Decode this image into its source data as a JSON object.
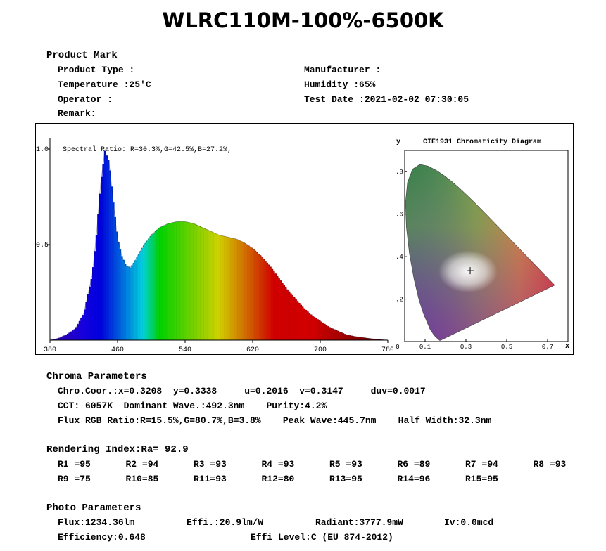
{
  "title": "WLRC110M-100%-6500K",
  "product": {
    "heading": "Product Mark",
    "type_label": "Product Type :",
    "temperature_label": "Temperature :25'C",
    "operator_label": "Operator :",
    "remark_label": "Remark:",
    "manufacturer_label": "Manufacturer :",
    "humidity_label": "Humidity :65%",
    "test_date_label": "Test Date :2021-02-02 07:30:05"
  },
  "chart_data": [
    {
      "type": "area",
      "title": "",
      "annotation": "Spectral Ratio:  R=30.3%,G=42.5%,B=27.2%,",
      "xlabel": "",
      "ylabel": "",
      "xlim": [
        380,
        780
      ],
      "ylim": [
        0,
        1.0
      ],
      "x_ticks": [
        "380",
        "460",
        "540",
        "620",
        "700",
        "780"
      ],
      "y_ticks": [
        "1.0",
        "0.5"
      ],
      "fill": "spectral-wavelength-colors",
      "x": [
        380,
        390,
        400,
        410,
        420,
        430,
        435,
        440,
        445,
        450,
        455,
        460,
        465,
        470,
        475,
        480,
        490,
        500,
        510,
        520,
        530,
        540,
        550,
        560,
        570,
        580,
        590,
        600,
        610,
        620,
        630,
        640,
        650,
        660,
        670,
        680,
        690,
        700,
        710,
        720,
        730,
        740,
        750,
        760,
        770,
        780
      ],
      "values": [
        0.0,
        0.01,
        0.03,
        0.06,
        0.14,
        0.34,
        0.55,
        0.82,
        0.99,
        0.93,
        0.72,
        0.53,
        0.44,
        0.39,
        0.38,
        0.41,
        0.49,
        0.55,
        0.59,
        0.61,
        0.62,
        0.62,
        0.61,
        0.59,
        0.57,
        0.55,
        0.54,
        0.53,
        0.51,
        0.48,
        0.44,
        0.39,
        0.33,
        0.27,
        0.22,
        0.17,
        0.13,
        0.1,
        0.07,
        0.05,
        0.03,
        0.02,
        0.014,
        0.008,
        0.004,
        0.0
      ]
    },
    {
      "type": "scatter",
      "title": "CIE1931 Chromaticity Diagram",
      "xlabel": "x",
      "ylabel": "y",
      "xlim": [
        0,
        0.8
      ],
      "ylim": [
        0,
        0.9
      ],
      "x_ticks": [
        "0",
        "0.1",
        "0.3",
        "0.5",
        "0.7"
      ],
      "y_ticks": [
        ".8",
        ".6",
        ".4",
        ".2"
      ],
      "point": {
        "x": 0.3208,
        "y": 0.3338
      },
      "locus_x": [
        0.1741,
        0.1738,
        0.1733,
        0.1726,
        0.1714,
        0.1689,
        0.1644,
        0.1566,
        0.144,
        0.1241,
        0.0913,
        0.0687,
        0.0454,
        0.0235,
        0.0082,
        0.0039,
        0.0139,
        0.0389,
        0.0743,
        0.1142,
        0.1547,
        0.1929,
        0.2296,
        0.2658,
        0.3016,
        0.3373,
        0.3731,
        0.4087,
        0.4441,
        0.4788,
        0.5125,
        0.5448,
        0.5752,
        0.6029,
        0.627,
        0.6482,
        0.6658,
        0.6801,
        0.6915,
        0.7006,
        0.7079,
        0.714,
        0.719,
        0.723,
        0.726,
        0.7347
      ],
      "locus_y": [
        0.005,
        0.0049,
        0.0048,
        0.0048,
        0.0051,
        0.0069,
        0.0109,
        0.0177,
        0.0297,
        0.0578,
        0.1327,
        0.2007,
        0.295,
        0.4127,
        0.5384,
        0.6548,
        0.7502,
        0.812,
        0.8338,
        0.8262,
        0.8059,
        0.7816,
        0.7543,
        0.7243,
        0.6923,
        0.6589,
        0.6245,
        0.5896,
        0.5547,
        0.5202,
        0.4866,
        0.4544,
        0.4242,
        0.3965,
        0.3725,
        0.3514,
        0.334,
        0.3197,
        0.3083,
        0.2993,
        0.292,
        0.2859,
        0.2809,
        0.277,
        0.274,
        0.2653
      ]
    }
  ],
  "chroma": {
    "heading": "Chroma Parameters",
    "line1": "Chro.Coor.:x=0.3208  y=0.3338     u=0.2016  v=0.3147     duv=0.0017",
    "line2": "CCT: 6057K  Dominant Wave.:492.3nm    Purity:4.2%",
    "line3": "Flux RGB Ratio:R=15.5%,G=80.7%,B=3.8%    Peak Wave:445.7nm    Half Width:32.3nm"
  },
  "rendering": {
    "heading": "Rendering Index:Ra= 92.9",
    "items": [
      "R1 =95",
      "R2 =94",
      "R3 =93",
      "R4 =93",
      "R5 =93",
      "R6 =89",
      "R7 =94",
      "R8 =93",
      "R9 =75",
      "R10=85",
      "R11=93",
      "R12=80",
      "R13=95",
      "R14=96",
      "R15=95"
    ]
  },
  "photo": {
    "heading": "Photo Parameters",
    "flux": "Flux:1234.36lm",
    "effi": "Effi.:20.9lm/W",
    "radiant": "Radiant:3777.9mW",
    "iv": "Iv:0.0mcd",
    "efficiency": "Efficiency:0.648",
    "effi_level": "Effi Level:C (EU 874-2012)"
  }
}
